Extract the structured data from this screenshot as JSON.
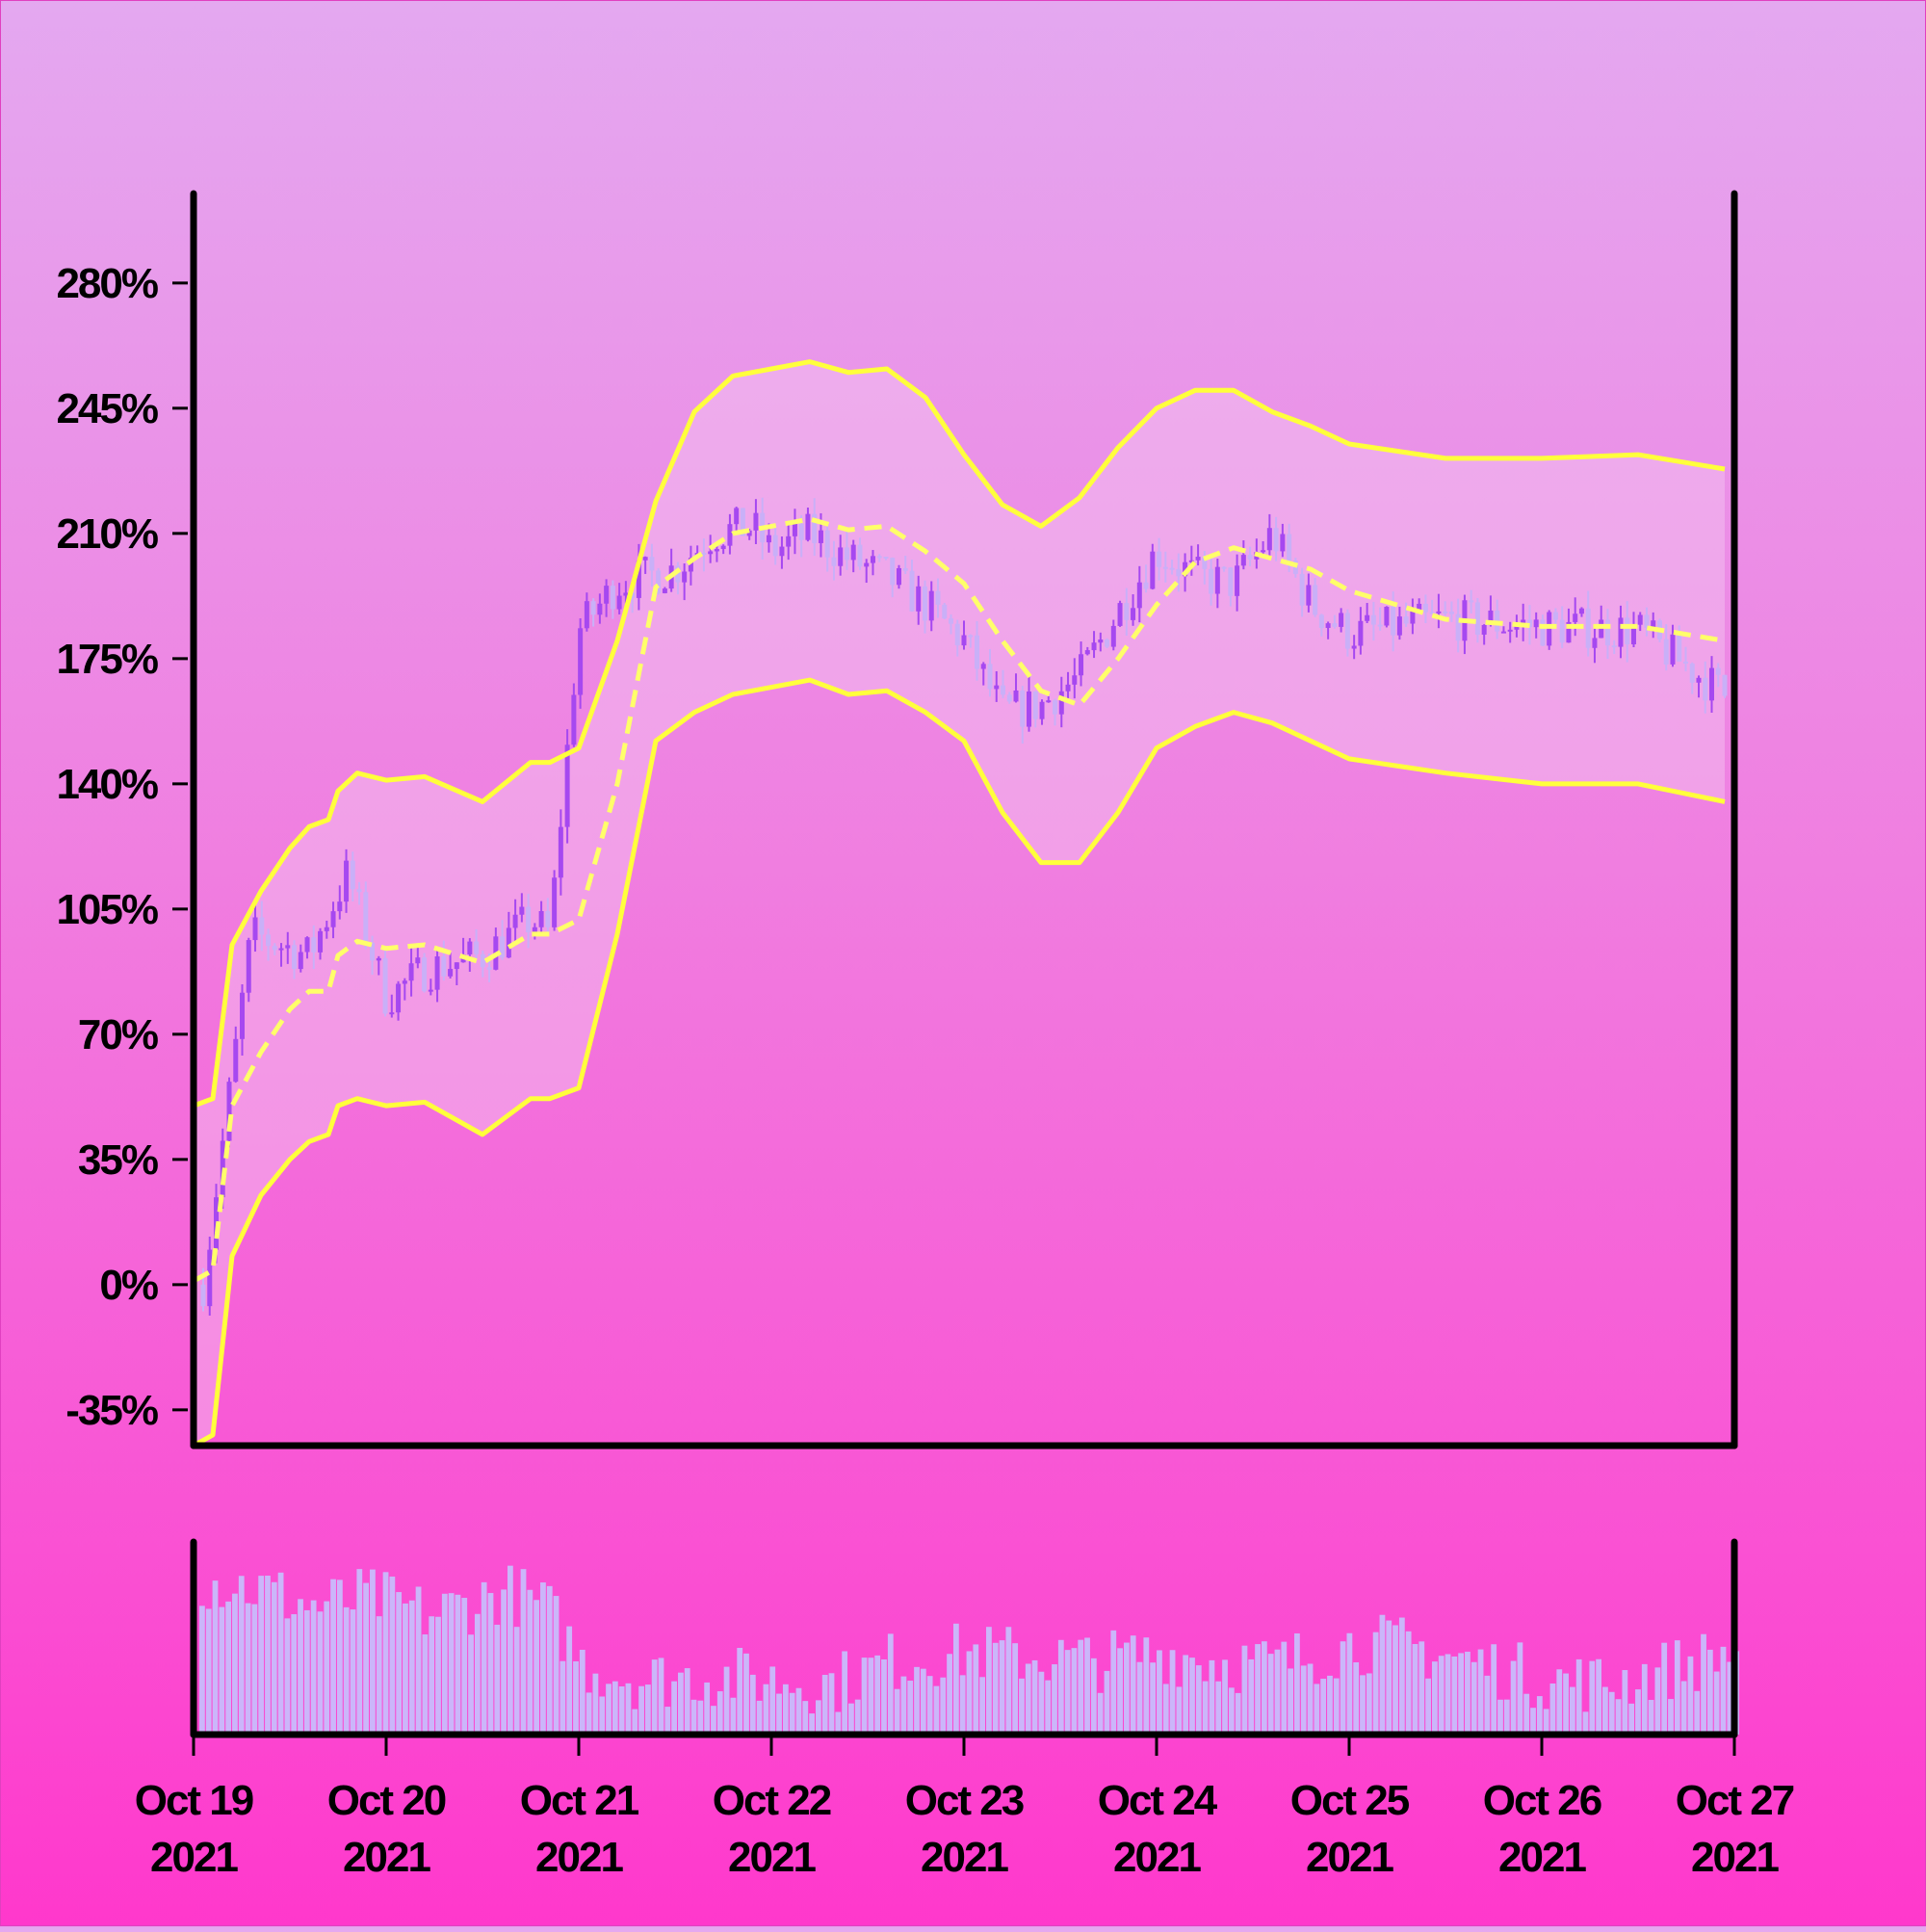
{
  "chart_data": {
    "type": "candlestick",
    "title": "",
    "xlabel": "",
    "ylabel": "",
    "y_axis": {
      "ticks": [
        "280%",
        "245%",
        "210%",
        "175%",
        "140%",
        "105%",
        "70%",
        "35%",
        "0%",
        "-35%"
      ],
      "tick_values": [
        280,
        245,
        210,
        175,
        140,
        105,
        70,
        35,
        0,
        -35
      ],
      "ylim": [
        -45,
        305
      ]
    },
    "x_axis": {
      "ticks": [
        {
          "line1": "Oct 19",
          "line2": "2021"
        },
        {
          "line1": "Oct 20",
          "line2": "2021"
        },
        {
          "line1": "Oct 21",
          "line2": "2021"
        },
        {
          "line1": "Oct 22",
          "line2": "2021"
        },
        {
          "line1": "Oct 23",
          "line2": "2021"
        },
        {
          "line1": "Oct 24",
          "line2": "2021"
        },
        {
          "line1": "Oct 25",
          "line2": "2021"
        },
        {
          "line1": "Oct 26",
          "line2": "2021"
        },
        {
          "line1": "Oct 27",
          "line2": "2021"
        }
      ],
      "day_range": [
        0,
        8
      ]
    },
    "grid": false,
    "legend": "none",
    "price_series": {
      "name": "",
      "day": [
        0.05,
        0.3,
        0.6,
        0.8,
        1.0,
        1.2,
        1.5,
        1.75,
        1.85,
        2.0,
        2.2,
        2.5,
        2.7,
        2.9,
        3.0,
        3.2,
        3.4,
        3.6,
        3.8,
        4.0,
        4.2,
        4.4,
        4.6,
        4.8,
        5.0,
        5.2,
        5.4,
        5.6,
        5.8,
        6.0,
        6.5,
        7.0,
        7.5,
        7.95
      ],
      "pct": [
        0,
        98,
        92,
        115,
        80,
        88,
        92,
        102,
        98,
        183,
        196,
        200,
        210,
        212,
        205,
        210,
        203,
        198,
        190,
        180,
        160,
        162,
        170,
        188,
        205,
        198,
        196,
        210,
        190,
        182,
        186,
        184,
        183,
        165
      ]
    },
    "bollinger": {
      "day": [
        0.0,
        0.1,
        0.2,
        0.35,
        0.5,
        0.6,
        0.7,
        0.75,
        0.85,
        1.0,
        1.2,
        1.5,
        1.75,
        1.85,
        2.0,
        2.2,
        2.4,
        2.6,
        2.8,
        3.0,
        3.2,
        3.4,
        3.6,
        3.8,
        4.0,
        4.2,
        4.4,
        4.6,
        4.8,
        5.0,
        5.2,
        5.4,
        5.6,
        5.8,
        6.0,
        6.5,
        7.0,
        7.5,
        7.95
      ],
      "middle": [
        1,
        4,
        50,
        65,
        77,
        82,
        82,
        92,
        96,
        94,
        95,
        90,
        98,
        98,
        102,
        140,
        195,
        203,
        210,
        212,
        214,
        211,
        212,
        205,
        196,
        180,
        166,
        162,
        175,
        190,
        202,
        206,
        203,
        200,
        194,
        186,
        184,
        184,
        180
      ],
      "upper": [
        50,
        52,
        95,
        110,
        122,
        128,
        130,
        138,
        143,
        141,
        142,
        135,
        146,
        146,
        150,
        180,
        219,
        244,
        254,
        256,
        258,
        255,
        256,
        248,
        232,
        218,
        212,
        220,
        234,
        245,
        250,
        250,
        244,
        240,
        235,
        231,
        231,
        232,
        228
      ],
      "lower": [
        -45,
        -42,
        8,
        25,
        35,
        40,
        42,
        50,
        52,
        50,
        51,
        42,
        52,
        52,
        55,
        98,
        152,
        160,
        165,
        167,
        169,
        165,
        166,
        160,
        152,
        132,
        118,
        118,
        132,
        150,
        156,
        160,
        157,
        152,
        147,
        143,
        140,
        140,
        135
      ]
    },
    "volume": {
      "day": [
        0.0,
        0.3,
        0.6,
        0.9,
        1.2,
        1.6,
        1.8,
        2.0,
        2.3,
        2.6,
        3.0,
        3.3,
        3.6,
        4.0,
        4.4,
        4.7,
        5.0,
        5.3,
        5.6,
        6.0,
        6.3,
        6.6,
        7.0,
        7.3,
        7.6,
        7.95
      ],
      "relative": [
        0.85,
        0.8,
        0.7,
        0.75,
        0.65,
        0.78,
        0.7,
        0.38,
        0.3,
        0.32,
        0.3,
        0.28,
        0.4,
        0.45,
        0.42,
        0.4,
        0.45,
        0.4,
        0.38,
        0.5,
        0.48,
        0.4,
        0.3,
        0.28,
        0.35,
        0.45
      ]
    }
  }
}
